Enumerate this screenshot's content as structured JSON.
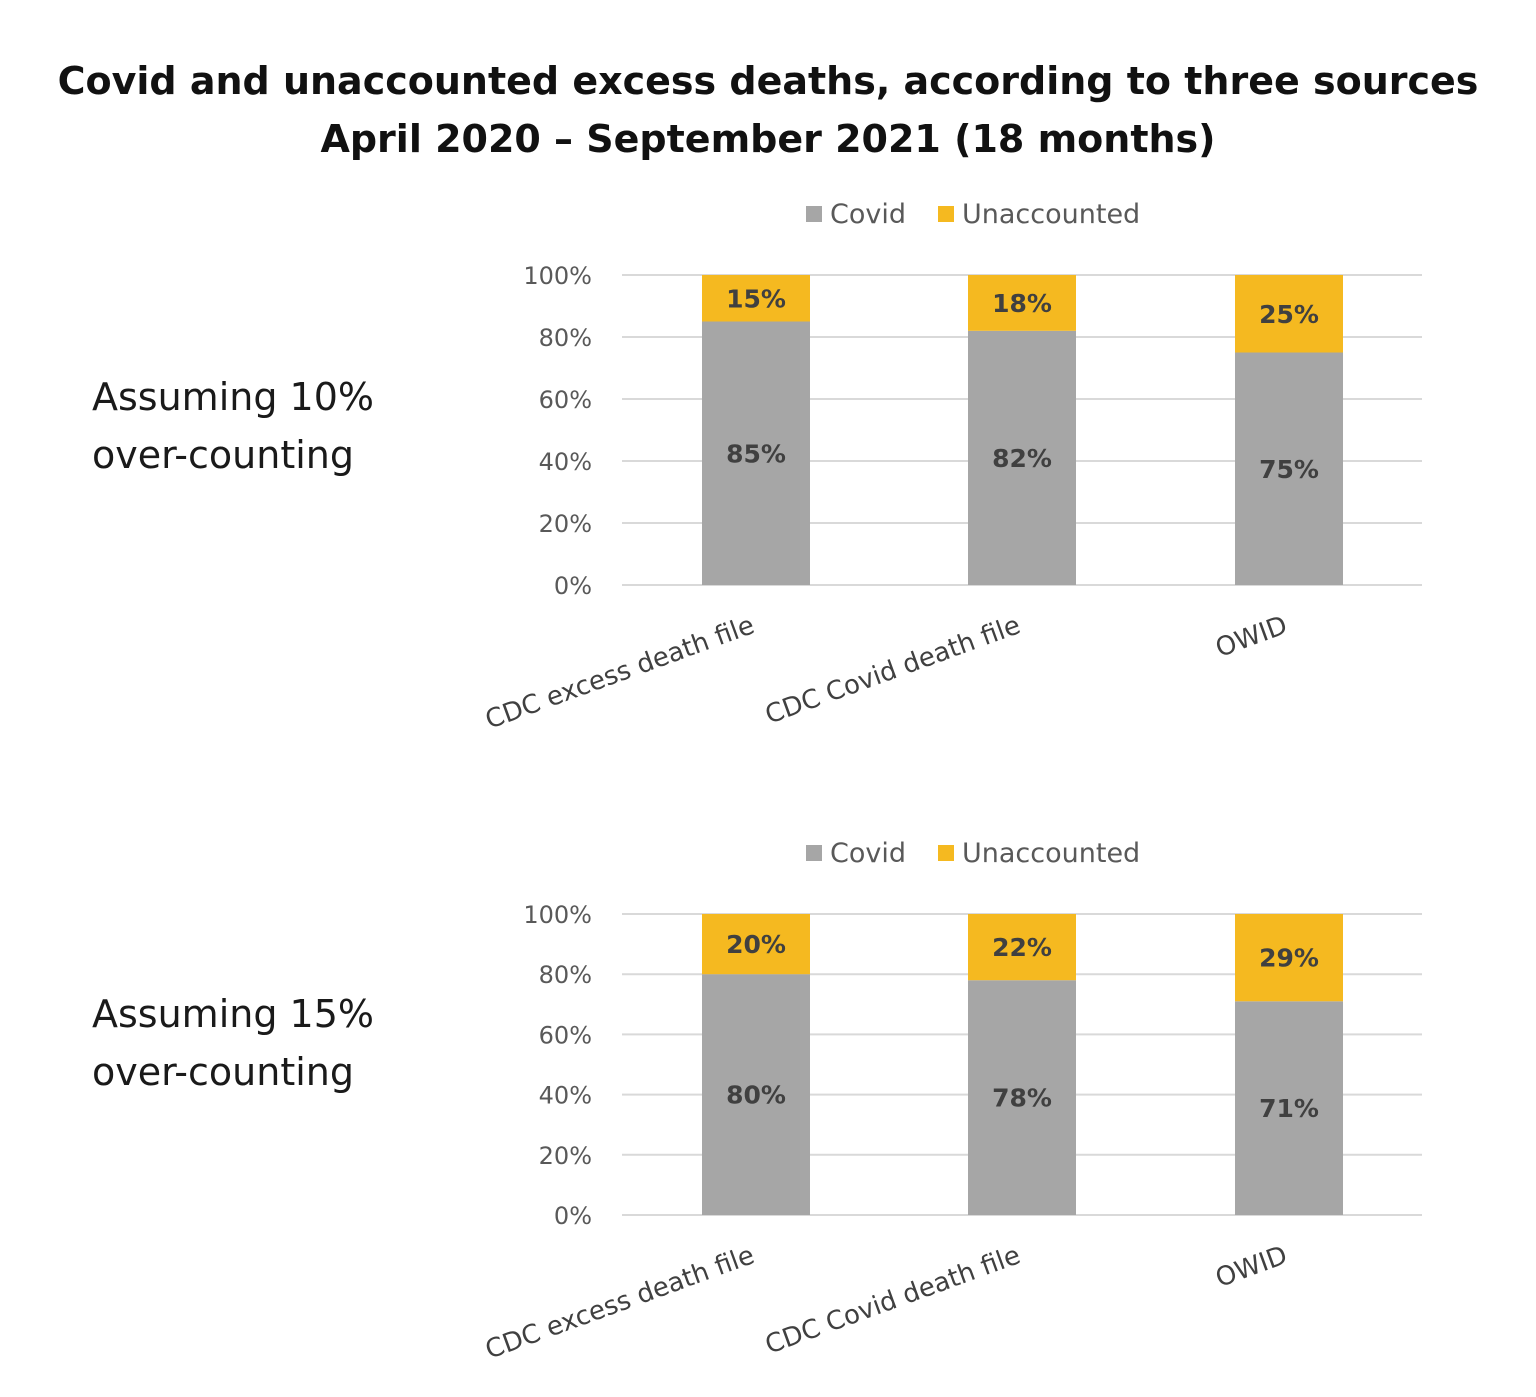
{
  "title": {
    "line1": "Covid and unaccounted excess deaths, according to three sources",
    "line2": "April 2020 – September 2021 (18 months)"
  },
  "panels": [
    {
      "label_line1": "Assuming 10%",
      "label_line2": "over-counting"
    },
    {
      "label_line1": "Assuming 15%",
      "label_line2": "over-counting"
    }
  ],
  "colors": {
    "covid": "#a6a6a6",
    "unaccounted": "#f5b920",
    "grid": "#d9d9d9"
  },
  "chart_data": [
    {
      "type": "bar",
      "stacked": true,
      "categories": [
        "CDC excess death file",
        "CDC Covid death file",
        "OWID"
      ],
      "series": [
        {
          "name": "Covid",
          "values": [
            85,
            82,
            75
          ],
          "labels": [
            "85%",
            "82%",
            "75%"
          ]
        },
        {
          "name": "Unaccounted",
          "values": [
            15,
            18,
            25
          ],
          "labels": [
            "15%",
            "18%",
            "25%"
          ]
        }
      ],
      "yticks": [
        "0%",
        "20%",
        "40%",
        "60%",
        "80%",
        "100%"
      ],
      "ylim": [
        0,
        100
      ],
      "grid": true,
      "legend": "top"
    },
    {
      "type": "bar",
      "stacked": true,
      "categories": [
        "CDC excess death file",
        "CDC Covid death file",
        "OWID"
      ],
      "series": [
        {
          "name": "Covid",
          "values": [
            80,
            78,
            71
          ],
          "labels": [
            "80%",
            "78%",
            "71%"
          ]
        },
        {
          "name": "Unaccounted",
          "values": [
            20,
            22,
            29
          ],
          "labels": [
            "20%",
            "22%",
            "29%"
          ]
        }
      ],
      "yticks": [
        "0%",
        "20%",
        "40%",
        "60%",
        "80%",
        "100%"
      ],
      "ylim": [
        0,
        100
      ],
      "grid": true,
      "legend": "top"
    }
  ]
}
